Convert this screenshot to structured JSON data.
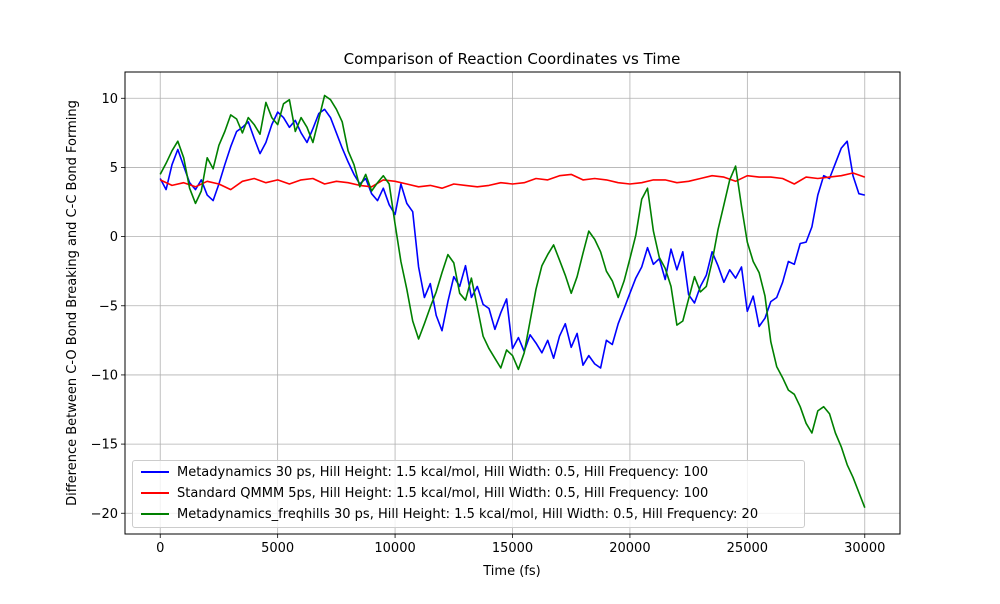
{
  "chart_data": {
    "type": "line",
    "title": "Comparison of Reaction Coordinates vs Time",
    "xlabel": "Time (fs)",
    "ylabel": "Difference Between C-O Bond Breaking and C-C Bond Forming",
    "xlim": [
      -1500,
      31500
    ],
    "ylim": [
      -21.5,
      11.9
    ],
    "xticks": [
      0,
      5000,
      10000,
      15000,
      20000,
      25000,
      30000
    ],
    "xtick_labels": [
      "0",
      "5000",
      "10000",
      "15000",
      "20000",
      "25000",
      "30000"
    ],
    "yticks": [
      -20,
      -15,
      -10,
      -5,
      0,
      5,
      10
    ],
    "ytick_labels": [
      "−20",
      "−15",
      "−10",
      "−5",
      "0",
      "5",
      "10"
    ],
    "grid": true,
    "legend_position": "lower-left",
    "series": [
      {
        "name": "Metadynamics 30 ps, Hill Height: 1.5 kcal/mol, Hill Width: 0.5, Hill Frequency: 100",
        "color": "#0000ff",
        "x": [
          0,
          250,
          500,
          750,
          1000,
          1250,
          1500,
          1750,
          2000,
          2250,
          2500,
          2750,
          3000,
          3250,
          3500,
          3750,
          4000,
          4250,
          4500,
          4750,
          5000,
          5250,
          5500,
          5750,
          6000,
          6250,
          6500,
          6750,
          7000,
          7250,
          7500,
          7750,
          8000,
          8250,
          8500,
          8750,
          9000,
          9250,
          9500,
          9750,
          10000,
          10250,
          10500,
          10750,
          11000,
          11250,
          11500,
          11750,
          12000,
          12250,
          12500,
          12750,
          13000,
          13250,
          13500,
          13750,
          14000,
          14250,
          14500,
          14750,
          15000,
          15250,
          15500,
          15750,
          16000,
          16250,
          16500,
          16750,
          17000,
          17250,
          17500,
          17750,
          18000,
          18250,
          18500,
          18750,
          19000,
          19250,
          19500,
          19750,
          20000,
          20250,
          20500,
          20750,
          21000,
          21250,
          21500,
          21750,
          22000,
          22250,
          22500,
          22750,
          23000,
          23250,
          23500,
          23750,
          24000,
          24250,
          24500,
          24750,
          25000,
          25250,
          25500,
          25750,
          26000,
          26250,
          26500,
          26750,
          27000,
          27250,
          27500,
          27750,
          28000,
          28250,
          28500,
          28750,
          29000,
          29250,
          29500,
          29750,
          30000
        ],
        "y": [
          4.2,
          3.4,
          5.2,
          6.3,
          5.1,
          3.9,
          3.4,
          4.1,
          3.0,
          2.6,
          3.8,
          5.2,
          6.5,
          7.6,
          7.9,
          8.3,
          7.1,
          6.0,
          6.8,
          8.1,
          9.0,
          8.6,
          7.9,
          8.4,
          7.5,
          6.8,
          7.8,
          8.9,
          9.2,
          8.6,
          7.5,
          6.4,
          5.4,
          4.5,
          3.8,
          4.2,
          3.1,
          2.6,
          3.5,
          2.3,
          1.6,
          3.8,
          2.4,
          1.8,
          -2.2,
          -4.4,
          -3.4,
          -5.7,
          -6.8,
          -4.7,
          -2.9,
          -3.6,
          -2.1,
          -4.4,
          -3.6,
          -4.9,
          -5.2,
          -6.7,
          -5.5,
          -4.5,
          -8.1,
          -7.3,
          -8.3,
          -7.1,
          -7.7,
          -8.4,
          -7.5,
          -8.8,
          -7.2,
          -6.3,
          -8.0,
          -7.0,
          -9.3,
          -8.6,
          -9.2,
          -9.5,
          -7.5,
          -7.8,
          -6.3,
          -5.2,
          -4.1,
          -3.0,
          -2.2,
          -0.8,
          -2.0,
          -1.6,
          -3.1,
          -0.9,
          -2.4,
          -1.1,
          -4.2,
          -4.8,
          -3.6,
          -2.8,
          -1.1,
          -2.1,
          -3.3,
          -2.4,
          -3.0,
          -2.2,
          -5.4,
          -4.3,
          -6.5,
          -5.9,
          -4.7,
          -4.4,
          -3.3,
          -1.8,
          -2.0,
          -0.5,
          -0.4,
          0.7,
          3.0,
          4.4,
          4.2,
          5.3,
          6.4,
          6.9,
          4.4,
          3.1,
          3.0
        ]
      },
      {
        "name": "Standard QMMM 5ps, Hill Height: 1.5 kcal/mol, Hill Width: 0.5, Hill Frequency: 100",
        "color": "#ff0000",
        "x": [
          0,
          500,
          1000,
          1500,
          2000,
          2500,
          3000,
          3500,
          4000,
          4500,
          5000,
          5500,
          6000,
          6500,
          7000,
          7500,
          8000,
          8500,
          9000,
          9500,
          10000,
          10500,
          11000,
          11500,
          12000,
          12500,
          13000,
          13500,
          14000,
          14500,
          15000,
          15500,
          16000,
          16500,
          17000,
          17500,
          18000,
          18500,
          19000,
          19500,
          20000,
          20500,
          21000,
          21500,
          22000,
          22500,
          23000,
          23500,
          24000,
          24500,
          25000,
          25500,
          26000,
          26500,
          27000,
          27500,
          28000,
          28500,
          29000,
          29500,
          30000
        ],
        "y": [
          4.1,
          3.7,
          3.9,
          3.6,
          4.0,
          3.8,
          3.4,
          4.0,
          4.2,
          3.9,
          4.1,
          3.8,
          4.1,
          4.2,
          3.8,
          4.0,
          3.9,
          3.7,
          3.6,
          4.1,
          4.0,
          3.8,
          3.6,
          3.7,
          3.5,
          3.8,
          3.7,
          3.6,
          3.7,
          3.9,
          3.8,
          3.9,
          4.2,
          4.1,
          4.4,
          4.5,
          4.1,
          4.2,
          4.1,
          3.9,
          3.8,
          3.9,
          4.1,
          4.1,
          3.9,
          4.0,
          4.2,
          4.4,
          4.3,
          4.0,
          4.4,
          4.3,
          4.3,
          4.2,
          3.8,
          4.3,
          4.2,
          4.3,
          4.4,
          4.6,
          4.3
        ]
      },
      {
        "name": "Metadynamics_freqhills 30 ps, Hill Height: 1.5 kcal/mol, Hill Width: 0.5, Hill Frequency: 20",
        "color": "#008000",
        "x": [
          0,
          250,
          500,
          750,
          1000,
          1250,
          1500,
          1750,
          2000,
          2250,
          2500,
          2750,
          3000,
          3250,
          3500,
          3750,
          4000,
          4250,
          4500,
          4750,
          5000,
          5250,
          5500,
          5750,
          6000,
          6250,
          6500,
          6750,
          7000,
          7250,
          7500,
          7750,
          8000,
          8250,
          8500,
          8750,
          9000,
          9250,
          9500,
          9750,
          10000,
          10250,
          10500,
          10750,
          11000,
          11250,
          11500,
          11750,
          12000,
          12250,
          12500,
          12750,
          13000,
          13250,
          13500,
          13750,
          14000,
          14250,
          14500,
          14750,
          15000,
          15250,
          15500,
          15750,
          16000,
          16250,
          16500,
          16750,
          17000,
          17250,
          17500,
          17750,
          18000,
          18250,
          18500,
          18750,
          19000,
          19250,
          19500,
          19750,
          20000,
          20250,
          20500,
          20750,
          21000,
          21250,
          21500,
          21750,
          22000,
          22250,
          22500,
          22750,
          23000,
          23250,
          23500,
          23750,
          24000,
          24250,
          24500,
          24750,
          25000,
          25250,
          25500,
          25750,
          26000,
          26250,
          26500,
          26750,
          27000,
          27250,
          27500,
          27750,
          28000,
          28250,
          28500,
          28750,
          29000,
          29250,
          29500,
          29750,
          30000
        ],
        "y": [
          4.5,
          5.3,
          6.2,
          6.9,
          5.7,
          3.5,
          2.4,
          3.3,
          5.7,
          4.9,
          6.6,
          7.6,
          8.8,
          8.5,
          7.5,
          8.6,
          8.1,
          7.4,
          9.7,
          8.6,
          8.1,
          9.6,
          9.9,
          7.6,
          8.6,
          7.9,
          6.8,
          8.5,
          10.2,
          9.9,
          9.2,
          8.3,
          6.2,
          5.2,
          3.6,
          4.5,
          3.3,
          3.9,
          4.4,
          3.8,
          0.9,
          -1.8,
          -3.8,
          -6.1,
          -7.4,
          -6.3,
          -5.1,
          -4.0,
          -2.6,
          -1.3,
          -1.9,
          -4.1,
          -4.6,
          -3.0,
          -5.1,
          -7.2,
          -8.1,
          -8.8,
          -9.5,
          -8.2,
          -8.6,
          -9.6,
          -8.4,
          -6.1,
          -3.8,
          -2.1,
          -1.3,
          -0.6,
          -1.7,
          -2.8,
          -4.1,
          -2.9,
          -1.2,
          0.4,
          -0.2,
          -1.1,
          -2.5,
          -3.2,
          -4.4,
          -3.2,
          -1.6,
          0.1,
          2.7,
          3.5,
          0.4,
          -1.5,
          -2.3,
          -3.6,
          -6.4,
          -6.1,
          -4.5,
          -2.9,
          -4.0,
          -3.6,
          -1.8,
          0.5,
          2.3,
          4.1,
          5.1,
          2.2,
          -0.4,
          -1.8,
          -2.6,
          -4.3,
          -7.6,
          -9.4,
          -10.2,
          -11.1,
          -11.4,
          -12.3,
          -13.5,
          -14.2,
          -12.6,
          -12.3,
          -12.8,
          -14.2,
          -15.2,
          -16.5,
          -17.4,
          -18.5,
          -19.6
        ]
      }
    ]
  }
}
